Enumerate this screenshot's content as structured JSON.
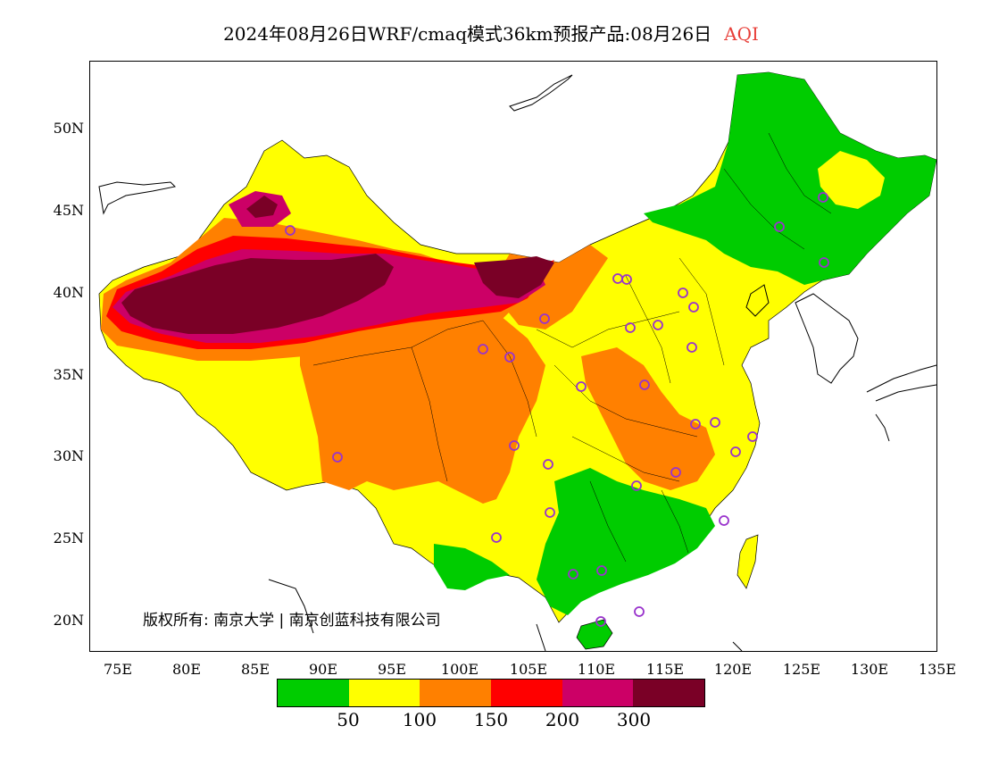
{
  "title": {
    "main": "2024年08月26日WRF/cmaq模式36km预报产品:08月26日",
    "variable": "AQI"
  },
  "copyright": "版权所有: 南京大学 | 南京创蓝科技有限公司",
  "axes": {
    "lat_labels": [
      "50N",
      "45N",
      "40N",
      "35N",
      "30N",
      "25N",
      "20N"
    ],
    "lon_labels": [
      "75E",
      "80E",
      "85E",
      "90E",
      "95E",
      "100E",
      "105E",
      "110E",
      "115E",
      "120E",
      "125E",
      "130E",
      "135E"
    ]
  },
  "legend": {
    "colors": [
      "#00cc00",
      "#ffff00",
      "#ff8000",
      "#ff0000",
      "#cc0066",
      "#7a0026"
    ],
    "labels": [
      "50",
      "100",
      "150",
      "200",
      "300"
    ]
  },
  "stations": {
    "marker": "circle-marker-icon",
    "color": "#9933cc"
  }
}
